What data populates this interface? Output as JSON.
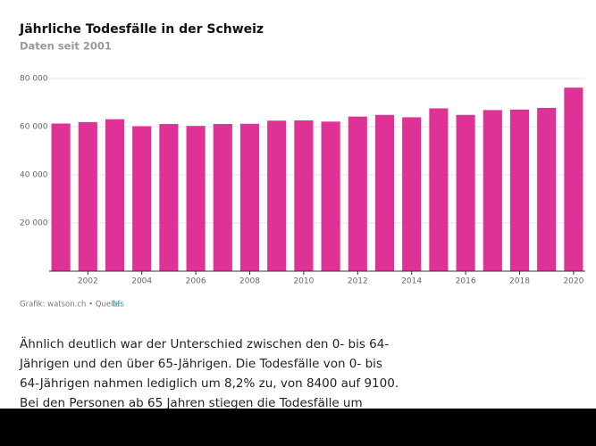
{
  "chart_data": {
    "type": "bar",
    "title": "Jährliche Todesfälle in der Schweiz",
    "subtitle": "Daten seit 2001",
    "x": [
      2001,
      2002,
      2003,
      2004,
      2005,
      2006,
      2007,
      2008,
      2009,
      2010,
      2011,
      2012,
      2013,
      2014,
      2015,
      2016,
      2017,
      2018,
      2019,
      2020
    ],
    "values": [
      61300,
      61900,
      63100,
      60200,
      61100,
      60300,
      61100,
      61200,
      62500,
      62600,
      62100,
      64200,
      64900,
      63900,
      67600,
      64900,
      66900,
      67100,
      67800,
      76200
    ],
    "color": "#de3296",
    "xlim": [
      2000.5,
      2020.5
    ],
    "xticks": [
      2002,
      2004,
      2006,
      2008,
      2010,
      2012,
      2014,
      2016,
      2018,
      2020
    ],
    "ylim": [
      0,
      80000
    ],
    "yticks": [
      {
        "value": 20000,
        "label": "20 000"
      },
      {
        "value": 40000,
        "label": "40 000"
      },
      {
        "value": 60000,
        "label": "60 000"
      },
      {
        "value": 80000,
        "label": "80 000"
      }
    ],
    "grid": true,
    "source": "Grafik: watson.ch • Quelle:",
    "source_link": "bfs"
  },
  "paragraph": [
    "Ähnlich deutlich war der Unterschied zwischen den 0- bis 64-",
    "Jährigen und den über 65-Jährigen. Die Todesfälle von 0- bis",
    "64-Jährigen nahmen lediglich um 8,2% zu, von 8400 auf 9100.",
    "Bei den Personen ab 65 Jahren stiegen die Todesfälle um"
  ]
}
